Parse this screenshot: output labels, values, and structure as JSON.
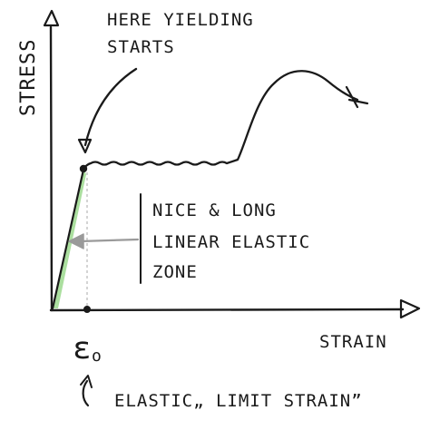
{
  "labels": {
    "y_axis": "STRESS",
    "x_axis": "STRAIN",
    "yield_note_line1": "HERE YIELDING",
    "yield_note_line2": "STARTS",
    "zone_line1": "NICE & LONG",
    "zone_line2": "LINEAR ELASTIC",
    "zone_line3": "ZONE",
    "epsilon": "ε",
    "epsilon_sub": "o",
    "limit_note": "ELASTIC„ LIMIT STRAIN”"
  },
  "colors": {
    "ink": "#1a1a1a",
    "elastic_fill": "#8fd47f",
    "elastic_stroke": "#2f8a2a",
    "pointer_arrow": "#9a9a9a",
    "guide_line": "#bdbdbd"
  }
}
